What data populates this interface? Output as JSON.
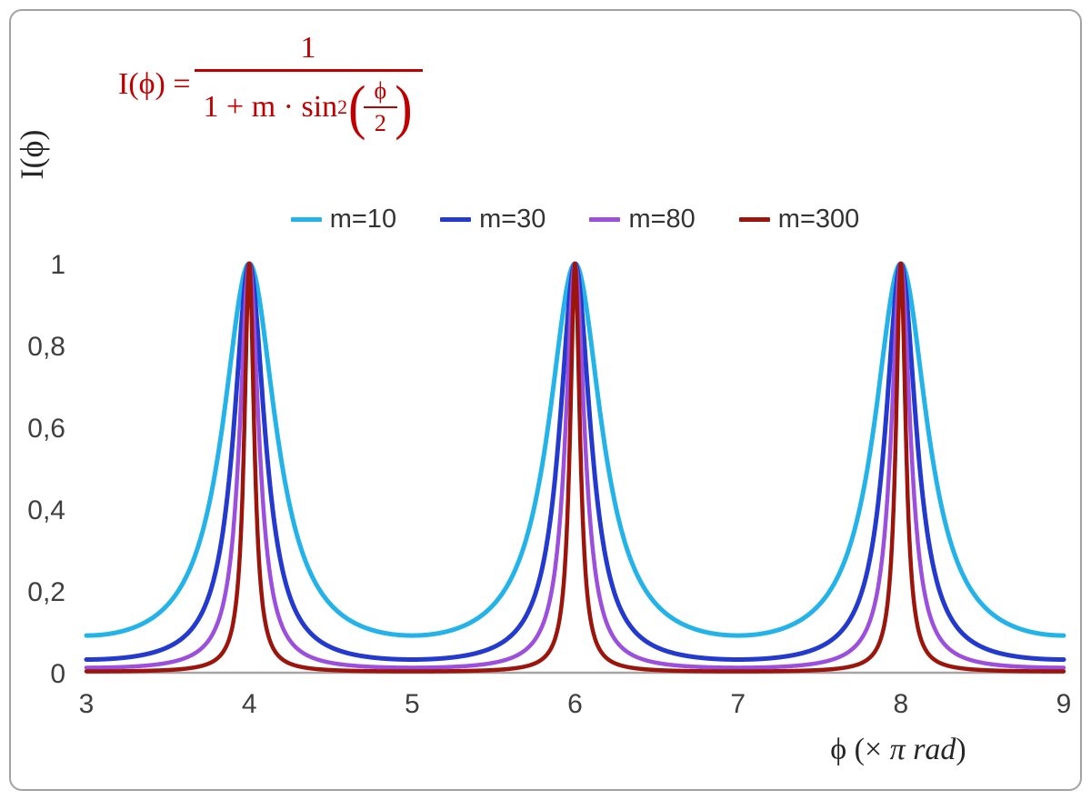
{
  "figure": {
    "ylabel": "I(ϕ)",
    "xlabel_prefix": "ϕ  (× ",
    "xlabel_italic": "π rad",
    "xlabel_suffix": ")"
  },
  "formula": {
    "color": "#C00000",
    "lhs": "I(ϕ) =",
    "numerator": "1",
    "denominator_prefix": "1 + m · sin",
    "exponent": "2",
    "left_paren": "(",
    "inner_numerator": "ϕ",
    "inner_denominator": "2",
    "right_paren": ")"
  },
  "chart_data": {
    "type": "line",
    "title": "",
    "function": "I(x) = 1 / (1 + m·sin²(π·x/2)), where x is ϕ in units of π rad (Airy / Fabry-Pérot transmission)",
    "xlabel": "ϕ (× π rad)",
    "ylabel": "I(ϕ)",
    "xlim": [
      3,
      9
    ],
    "ylim": [
      0,
      1.6
    ],
    "grid": false,
    "legend_position": "top-center",
    "peaks_at_x": [
      4,
      6,
      8
    ],
    "peak_value": 1,
    "x_ticks": [
      {
        "v": 3,
        "label": "3"
      },
      {
        "v": 4,
        "label": "4"
      },
      {
        "v": 5,
        "label": "5"
      },
      {
        "v": 6,
        "label": "6"
      },
      {
        "v": 7,
        "label": "7"
      },
      {
        "v": 8,
        "label": "8"
      },
      {
        "v": 9,
        "label": "9"
      }
    ],
    "y_ticks": [
      {
        "v": 0,
        "label": "0"
      },
      {
        "v": 0.2,
        "label": "0,2"
      },
      {
        "v": 0.4,
        "label": "0,4"
      },
      {
        "v": 0.6,
        "label": "0,6"
      },
      {
        "v": 0.8,
        "label": "0,8"
      },
      {
        "v": 1,
        "label": "1"
      }
    ],
    "series": [
      {
        "name": "m=10",
        "m": 10,
        "color": "#24B3E8",
        "stroke_width": 5,
        "minimum_value": 0.091
      },
      {
        "name": "m=30",
        "m": 30,
        "color": "#2439CE",
        "stroke_width": 5,
        "minimum_value": 0.032
      },
      {
        "name": "m=80",
        "m": 80,
        "color": "#9C4FDD",
        "stroke_width": 4.5,
        "minimum_value": 0.012
      },
      {
        "name": "m=300",
        "m": 300,
        "color": "#9C150C",
        "stroke_width": 4.5,
        "minimum_value": 0.003
      }
    ],
    "axis_color": "#A6A6A6",
    "tick_label_color": "#3F3F3F"
  }
}
